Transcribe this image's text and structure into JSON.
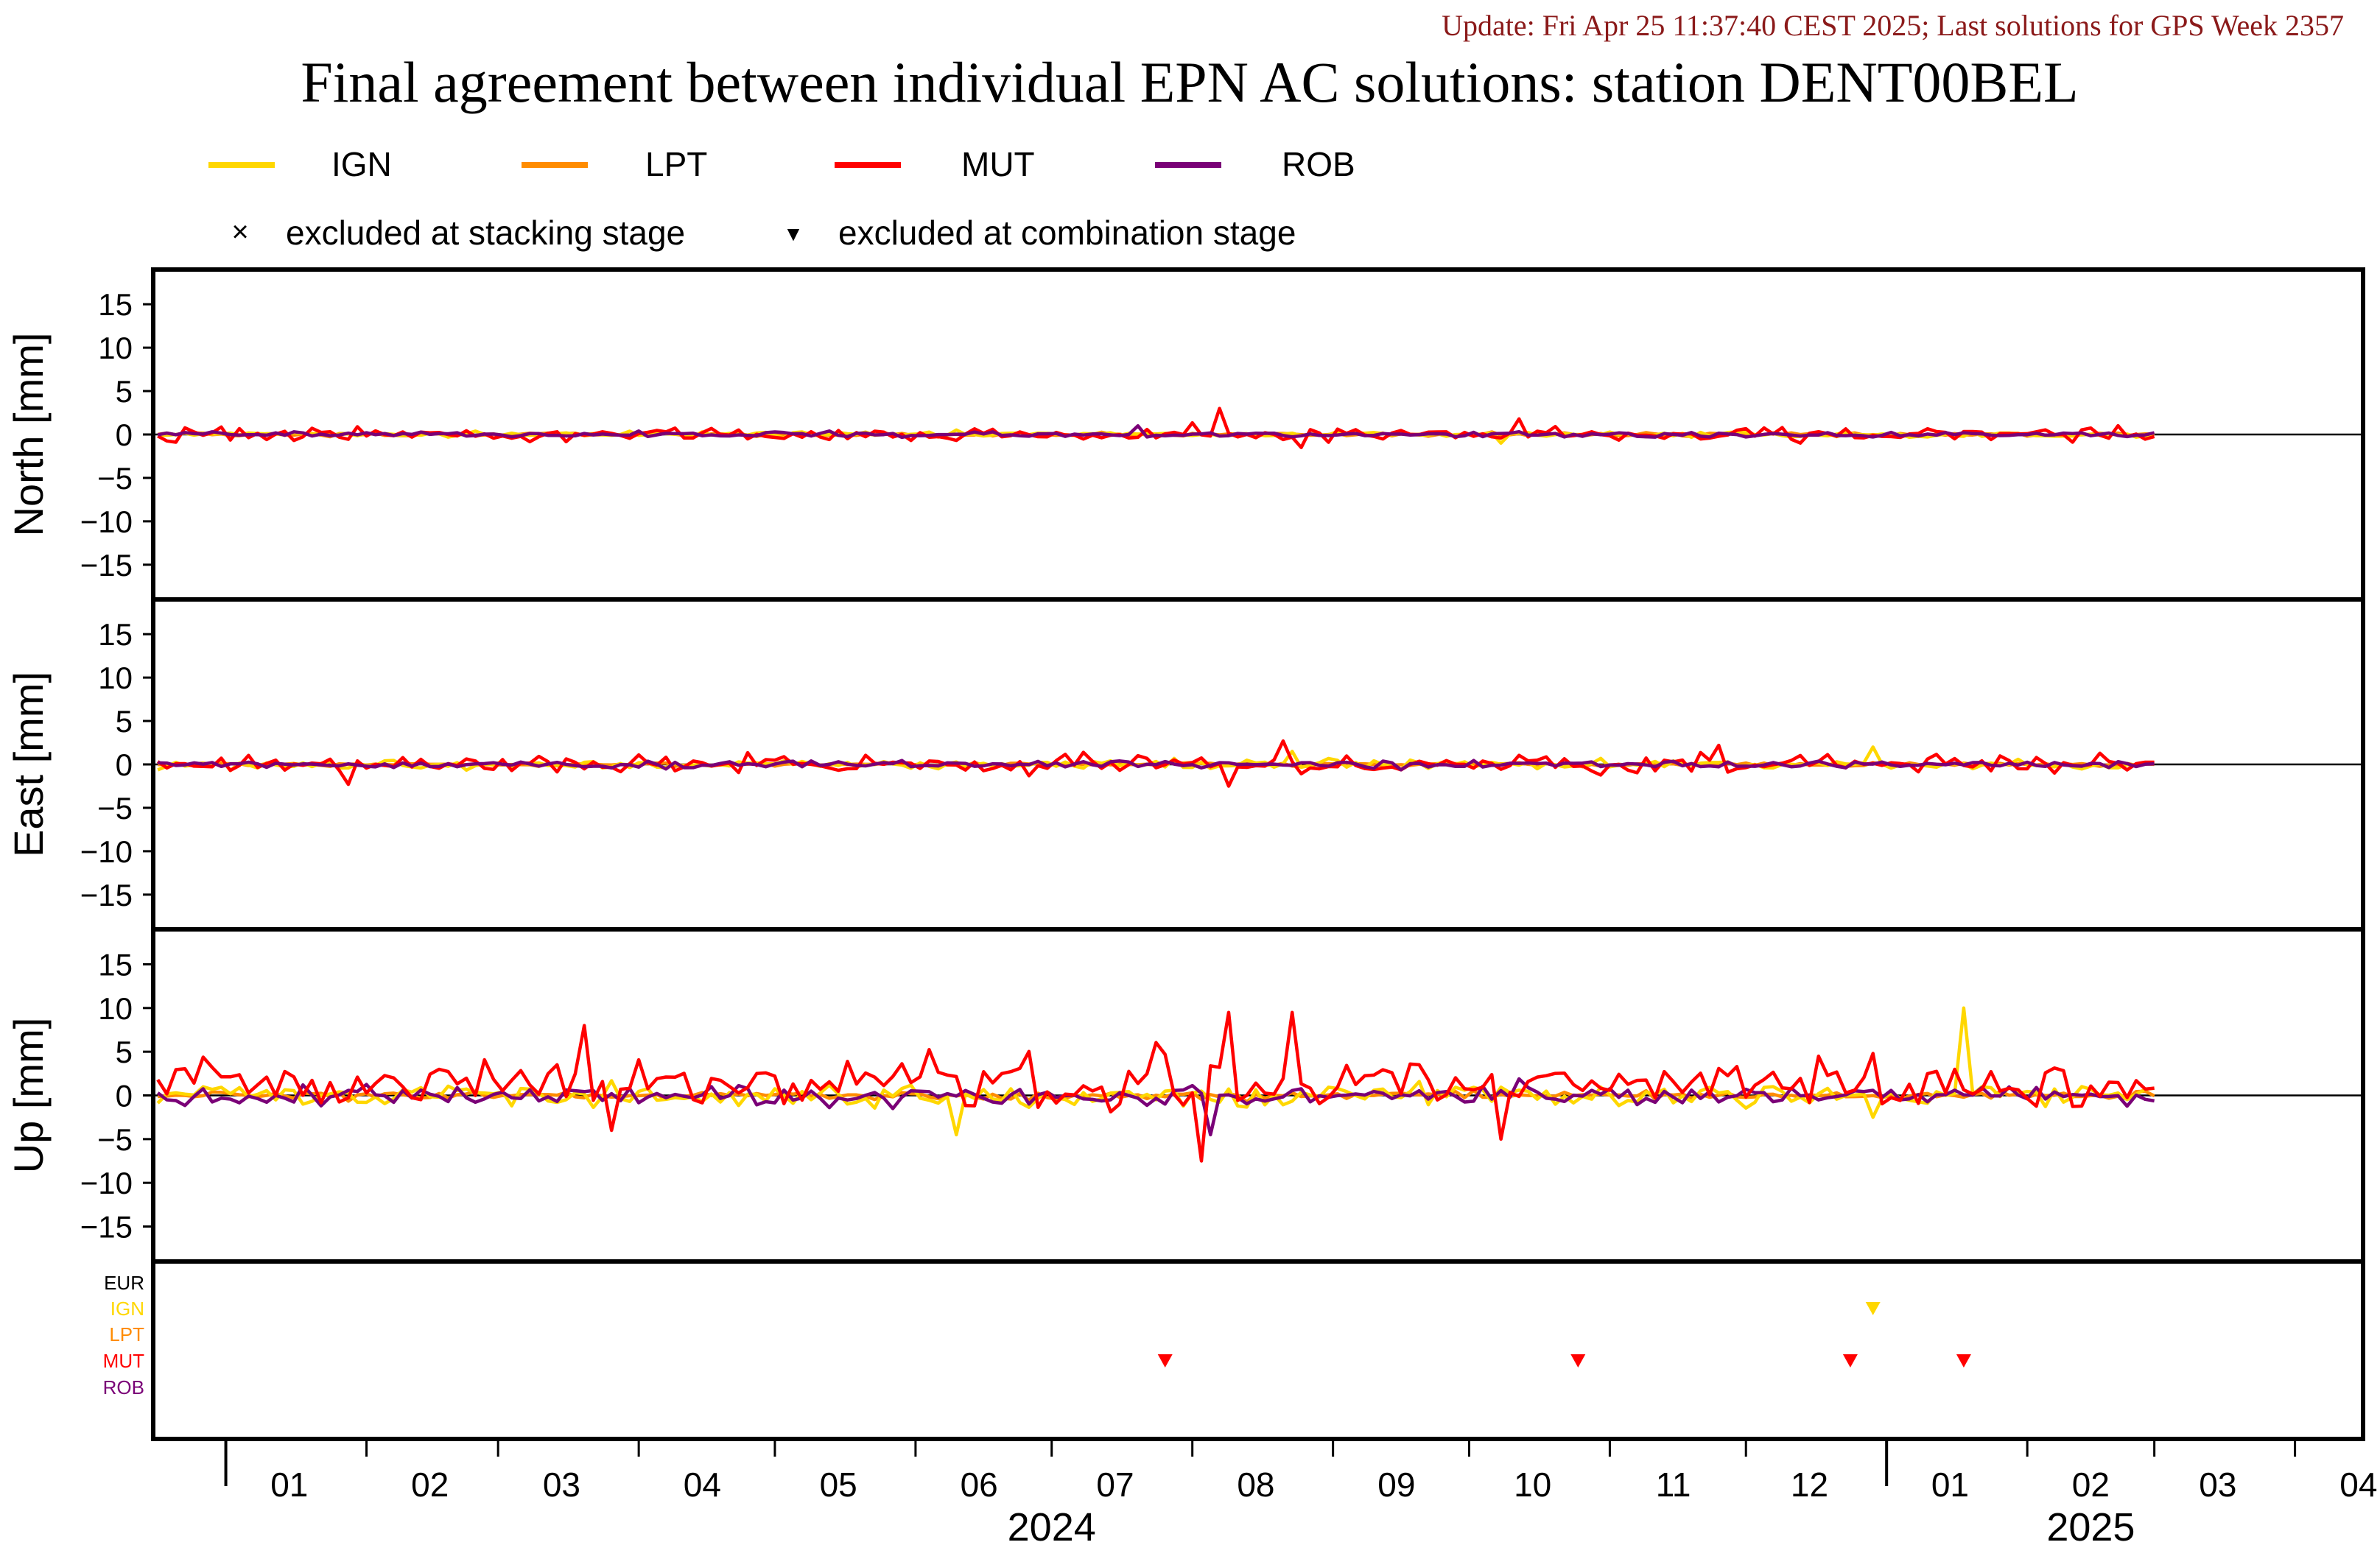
{
  "update_text": "Update: Fri Apr 25 11:37:40 CEST 2025; Last solutions for GPS Week 2357",
  "title": "Final agreement between individual EPN AC solutions: station DENT00BEL",
  "colors": {
    "IGN": "#FFD700",
    "LPT": "#FF8C00",
    "MUT": "#FF0000",
    "ROB": "#7A0077",
    "EUR": "#000000",
    "update_text": "#8B1A1A"
  },
  "legend": {
    "series": [
      {
        "name": "IGN",
        "color": "#FFD700"
      },
      {
        "name": "LPT",
        "color": "#FF8C00"
      },
      {
        "name": "MUT",
        "color": "#FF0000"
      },
      {
        "name": "ROB",
        "color": "#7A0077"
      }
    ],
    "excluded_stacking": "excluded at stacking stage",
    "excluded_combination": "excluded at combination stage",
    "stacking_symbol": "×",
    "combination_symbol": "▼"
  },
  "chart_data": {
    "type": "line",
    "x_axis": {
      "range": [
        "2023-12-16",
        "2025-04-16"
      ],
      "month_ticks": [
        "01",
        "02",
        "03",
        "04",
        "05",
        "06",
        "07",
        "08",
        "09",
        "10",
        "11",
        "12",
        "01",
        "02",
        "03",
        "04"
      ],
      "years": [
        "2024",
        "2025"
      ]
    },
    "panels": [
      {
        "ylabel": "North [mm]",
        "ylim": [
          -19,
          19
        ],
        "yticks": [
          15,
          10,
          5,
          0,
          -5,
          -10,
          -15
        ],
        "series": [
          {
            "name": "IGN",
            "amplitude_mm": 0.3,
            "notable": [
              {
                "date": "2024-10-08",
                "value": -1.0
              }
            ]
          },
          {
            "name": "LPT",
            "amplitude_mm": 0.2
          },
          {
            "name": "MUT",
            "amplitude_mm": 0.8,
            "notable": [
              {
                "date": "2024-08-06",
                "value": 3.0
              },
              {
                "date": "2024-10-12",
                "value": 1.8
              },
              {
                "date": "2024-08-25",
                "value": -1.5
              }
            ]
          },
          {
            "name": "ROB",
            "amplitude_mm": 0.3,
            "notable": [
              {
                "date": "2024-07-20",
                "value": 1.0
              }
            ]
          }
        ]
      },
      {
        "ylabel": "East [mm]",
        "ylim": [
          -19,
          19
        ],
        "yticks": [
          15,
          10,
          5,
          0,
          -5,
          -10,
          -15
        ],
        "series": [
          {
            "name": "IGN",
            "amplitude_mm": 0.5,
            "notable": [
              {
                "date": "2024-12-28",
                "value": 2.0
              },
              {
                "date": "2024-08-22",
                "value": 1.5
              }
            ]
          },
          {
            "name": "LPT",
            "amplitude_mm": 0.2
          },
          {
            "name": "MUT",
            "amplitude_mm": 1.1,
            "notable": [
              {
                "date": "2024-08-20",
                "value": 2.7
              },
              {
                "date": "2024-08-08",
                "value": -2.5
              },
              {
                "date": "2024-11-25",
                "value": 2.2
              },
              {
                "date": "2024-01-28",
                "value": -2.3
              }
            ]
          },
          {
            "name": "ROB",
            "amplitude_mm": 0.4
          }
        ]
      },
      {
        "ylabel": "Up [mm]",
        "ylim": [
          -19,
          19
        ],
        "yticks": [
          15,
          10,
          5,
          0,
          -5,
          -10,
          -15
        ],
        "series": [
          {
            "name": "IGN",
            "amplitude_mm": 1.2,
            "notable": [
              {
                "date": "2025-01-18",
                "value": 10.0
              },
              {
                "date": "2024-06-10",
                "value": -4.5
              },
              {
                "date": "2024-12-28",
                "value": -2.5
              }
            ]
          },
          {
            "name": "LPT",
            "amplitude_mm": 0.4
          },
          {
            "name": "MUT",
            "amplitude_mm": 2.6,
            "offset_mm": 1.5,
            "notable": [
              {
                "date": "2024-03-20",
                "value": 8.0
              },
              {
                "date": "2024-08-08",
                "value": 9.5
              },
              {
                "date": "2024-08-23",
                "value": 9.5
              },
              {
                "date": "2024-08-02",
                "value": -7.5
              },
              {
                "date": "2024-03-25",
                "value": -4.0
              },
              {
                "date": "2024-10-07",
                "value": -5.0
              }
            ]
          },
          {
            "name": "ROB",
            "amplitude_mm": 1.1,
            "notable": [
              {
                "date": "2024-08-05",
                "value": -4.5
              }
            ]
          }
        ]
      }
    ],
    "exclusion_panel": {
      "rows": [
        "EUR",
        "IGN",
        "LPT",
        "MUT",
        "ROB"
      ],
      "markers": [
        {
          "series": "IGN",
          "date": "2024-12-29",
          "type": "combination"
        },
        {
          "series": "MUT",
          "date": "2024-07-26",
          "type": "combination"
        },
        {
          "series": "MUT",
          "date": "2024-10-25",
          "type": "combination"
        },
        {
          "series": "MUT",
          "date": "2024-12-24",
          "type": "combination"
        },
        {
          "series": "MUT",
          "date": "2025-01-18",
          "type": "combination"
        }
      ]
    }
  }
}
